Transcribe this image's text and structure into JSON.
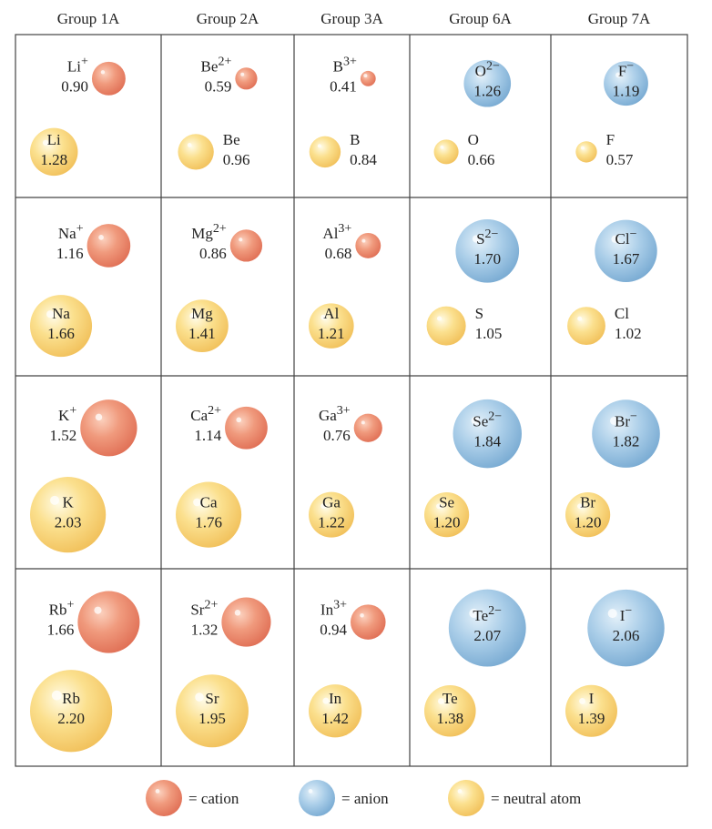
{
  "headers": [
    "Group 1A",
    "Group 2A",
    "Group 3A",
    "Group 6A",
    "Group 7A"
  ],
  "rows": [
    [
      {
        "ion": {
          "symbol": "Li",
          "charge": "+",
          "radius": "0.90"
        },
        "atom": {
          "symbol": "Li",
          "radius": "1.28"
        }
      },
      {
        "ion": {
          "symbol": "Be",
          "charge": "2+",
          "radius": "0.59"
        },
        "atom": {
          "symbol": "Be",
          "radius": "0.96"
        }
      },
      {
        "ion": {
          "symbol": "B",
          "charge": "3+",
          "radius": "0.41"
        },
        "atom": {
          "symbol": "B",
          "radius": "0.84"
        }
      },
      {
        "ion": {
          "symbol": "O",
          "charge": "2−",
          "radius": "1.26"
        },
        "atom": {
          "symbol": "O",
          "radius": "0.66"
        }
      },
      {
        "ion": {
          "symbol": "F",
          "charge": "−",
          "radius": "1.19"
        },
        "atom": {
          "symbol": "F",
          "radius": "0.57"
        }
      }
    ],
    [
      {
        "ion": {
          "symbol": "Na",
          "charge": "+",
          "radius": "1.16"
        },
        "atom": {
          "symbol": "Na",
          "radius": "1.66"
        }
      },
      {
        "ion": {
          "symbol": "Mg",
          "charge": "2+",
          "radius": "0.86"
        },
        "atom": {
          "symbol": "Mg",
          "radius": "1.41"
        }
      },
      {
        "ion": {
          "symbol": "Al",
          "charge": "3+",
          "radius": "0.68"
        },
        "atom": {
          "symbol": "Al",
          "radius": "1.21"
        }
      },
      {
        "ion": {
          "symbol": "S",
          "charge": "2−",
          "radius": "1.70"
        },
        "atom": {
          "symbol": "S",
          "radius": "1.05"
        }
      },
      {
        "ion": {
          "symbol": "Cl",
          "charge": "−",
          "radius": "1.67"
        },
        "atom": {
          "symbol": "Cl",
          "radius": "1.02"
        }
      }
    ],
    [
      {
        "ion": {
          "symbol": "K",
          "charge": "+",
          "radius": "1.52"
        },
        "atom": {
          "symbol": "K",
          "radius": "2.03"
        }
      },
      {
        "ion": {
          "symbol": "Ca",
          "charge": "2+",
          "radius": "1.14"
        },
        "atom": {
          "symbol": "Ca",
          "radius": "1.76"
        }
      },
      {
        "ion": {
          "symbol": "Ga",
          "charge": "3+",
          "radius": "0.76"
        },
        "atom": {
          "symbol": "Ga",
          "radius": "1.22"
        }
      },
      {
        "ion": {
          "symbol": "Se",
          "charge": "2−",
          "radius": "1.84"
        },
        "atom": {
          "symbol": "Se",
          "radius": "1.20"
        }
      },
      {
        "ion": {
          "symbol": "Br",
          "charge": "−",
          "radius": "1.82"
        },
        "atom": {
          "symbol": "Br",
          "radius": "1.20"
        }
      }
    ],
    [
      {
        "ion": {
          "symbol": "Rb",
          "charge": "+",
          "radius": "1.66"
        },
        "atom": {
          "symbol": "Rb",
          "radius": "2.20"
        }
      },
      {
        "ion": {
          "symbol": "Sr",
          "charge": "2+",
          "radius": "1.32"
        },
        "atom": {
          "symbol": "Sr",
          "radius": "1.95"
        }
      },
      {
        "ion": {
          "symbol": "In",
          "charge": "3+",
          "radius": "0.94"
        },
        "atom": {
          "symbol": "In",
          "radius": "1.42"
        }
      },
      {
        "ion": {
          "symbol": "Te",
          "charge": "2−",
          "radius": "2.07"
        },
        "atom": {
          "symbol": "Te",
          "radius": "1.38"
        }
      },
      {
        "ion": {
          "symbol": "I",
          "charge": "−",
          "radius": "2.06"
        },
        "atom": {
          "symbol": "I",
          "radius": "1.39"
        }
      }
    ]
  ],
  "legend": [
    "= cation",
    "= anion",
    "= neutral atom"
  ]
}
